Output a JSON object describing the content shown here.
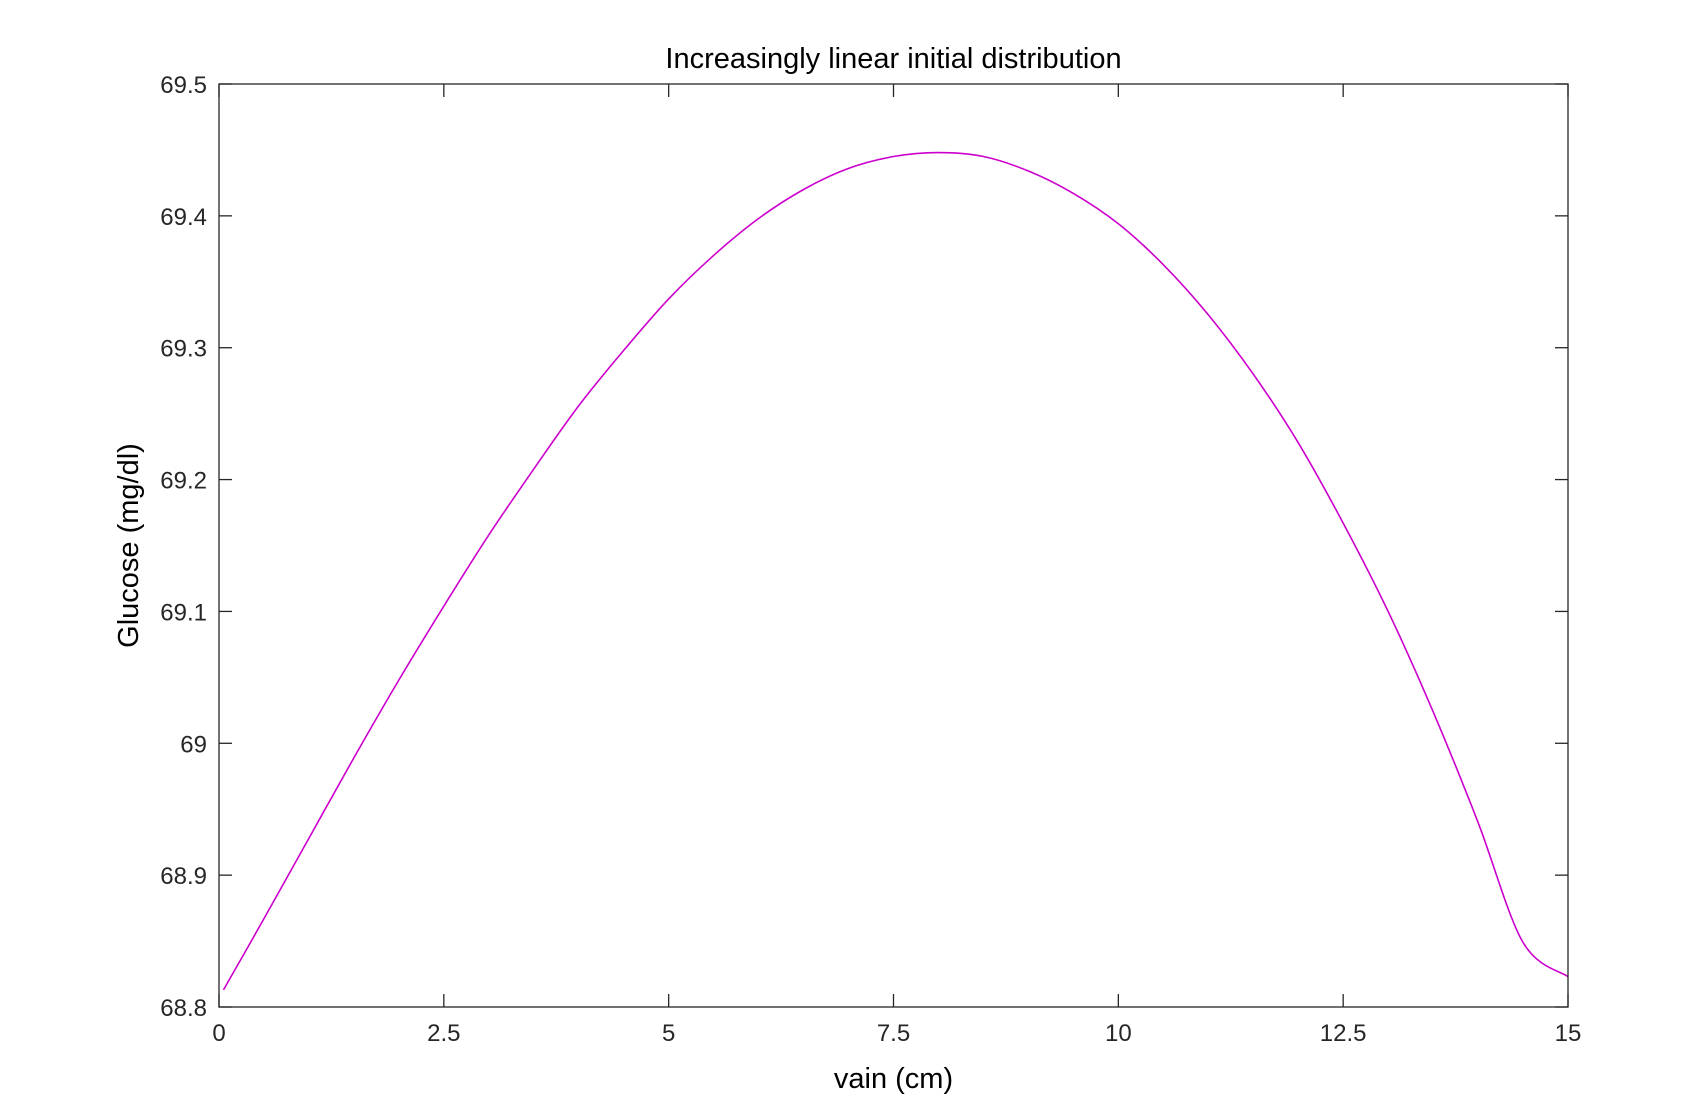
{
  "chart_data": {
    "type": "line",
    "title": "Increasingly linear initial distribution",
    "xlabel": "vain (cm)",
    "ylabel": "Glucose (mg/dl)",
    "xlim": [
      0,
      15
    ],
    "ylim": [
      68.8,
      69.5
    ],
    "x_ticks": [
      {
        "value": 0,
        "label": "0"
      },
      {
        "value": 2.5,
        "label": "2.5"
      },
      {
        "value": 5,
        "label": "5"
      },
      {
        "value": 7.5,
        "label": "7.5"
      },
      {
        "value": 10,
        "label": "10"
      },
      {
        "value": 12.5,
        "label": "12.5"
      },
      {
        "value": 15,
        "label": "15"
      }
    ],
    "y_ticks": [
      {
        "value": 68.8,
        "label": "68.8"
      },
      {
        "value": 68.9,
        "label": "68.9"
      },
      {
        "value": 69.0,
        "label": "69"
      },
      {
        "value": 69.1,
        "label": "69.1"
      },
      {
        "value": 69.2,
        "label": "69.2"
      },
      {
        "value": 69.3,
        "label": "69.3"
      },
      {
        "value": 69.4,
        "label": "69.4"
      },
      {
        "value": 69.5,
        "label": "69.5"
      }
    ],
    "grid": false,
    "series": [
      {
        "color": "#cc00cc",
        "x": [
          0.05,
          0.5,
          1.0,
          1.5,
          2.0,
          2.5,
          3.0,
          3.5,
          4.0,
          4.5,
          5.0,
          5.5,
          6.0,
          6.5,
          7.0,
          7.5,
          8.0,
          8.5,
          9.0,
          9.5,
          10.0,
          10.5,
          11.0,
          11.5,
          12.0,
          12.5,
          13.0,
          13.5,
          14.0,
          14.5,
          15.0
        ],
        "y": [
          68.813,
          68.867,
          68.928,
          68.989,
          69.048,
          69.104,
          69.158,
          69.208,
          69.256,
          69.298,
          69.337,
          69.37,
          69.398,
          69.42,
          69.436,
          69.445,
          69.448,
          69.445,
          69.434,
          69.417,
          69.394,
          69.363,
          69.325,
          69.28,
          69.228,
          69.167,
          69.1,
          69.024,
          68.94,
          68.849,
          68.823
        ]
      }
    ]
  }
}
